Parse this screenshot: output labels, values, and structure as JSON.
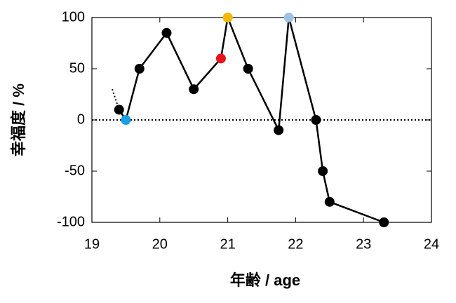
{
  "chart_data": {
    "type": "line",
    "x_label": "年齢 / age",
    "y_label": "幸福度 / %",
    "x": [
      19.4,
      19.5,
      19.7,
      20.1,
      20.5,
      20.9,
      21.0,
      21.3,
      21.75,
      21.9,
      22.3,
      22.4,
      22.5,
      23.3
    ],
    "values": [
      10,
      0,
      50,
      85,
      30,
      60,
      100,
      50,
      -10,
      100,
      0,
      -50,
      -80,
      -100
    ],
    "point_colors": [
      "#000000",
      "#1a9fe0",
      "#000000",
      "#000000",
      "#000000",
      "#e8141a",
      "#f5b800",
      "#000000",
      "#000000",
      "#9ec2e6",
      "#000000",
      "#000000",
      "#000000",
      "#000000"
    ],
    "line_color": "#000000",
    "dotted_lead": {
      "x": [
        19.3,
        19.4
      ],
      "values": [
        30,
        10
      ]
    },
    "zero_line": true,
    "xlim": [
      19,
      24
    ],
    "xticks": [
      19,
      20,
      21,
      22,
      23,
      24
    ],
    "ylim": [
      -100,
      100
    ],
    "yticks": [
      -100,
      -50,
      0,
      50,
      100
    ]
  }
}
